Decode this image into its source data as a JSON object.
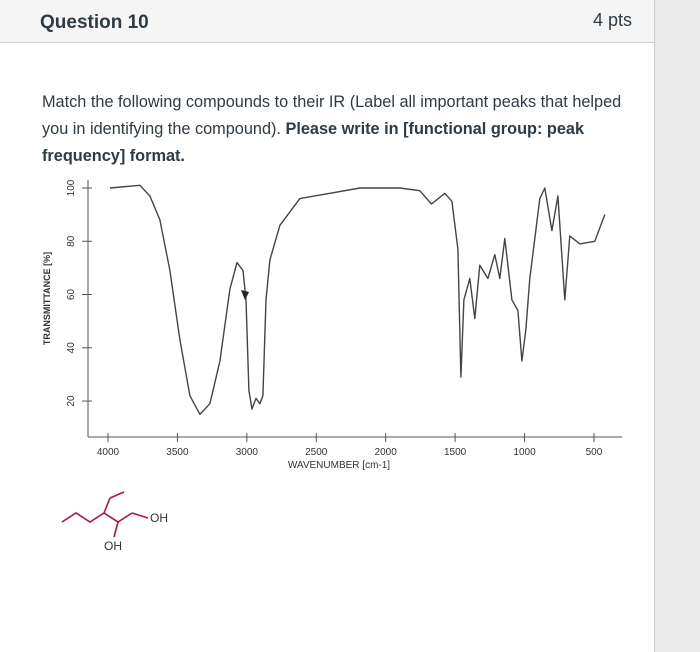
{
  "header": {
    "title": "Question 10",
    "points": "4 pts"
  },
  "prompt": {
    "text": "Match the following compounds to their IR (Label all important peaks that helped you in identifying the compound). ",
    "bold": "Please write in [functional group: peak frequency] format."
  },
  "chart_data": {
    "type": "line",
    "xlabel": "WAVENUMBER [cm-1]",
    "ylabel": "TRANSMITTANCE [%]",
    "color": "#444444",
    "xlim": [
      4144,
      298
    ],
    "ylim": [
      6.5,
      103
    ],
    "xticks": [
      4000,
      3500,
      3000,
      2500,
      2000,
      1500,
      1000,
      500
    ],
    "yticks": [
      20,
      40,
      60,
      80,
      100
    ],
    "x": [
      3986,
      3770,
      3698,
      3626,
      3554,
      3482,
      3410,
      3338,
      3266,
      3194,
      3122,
      3071,
      3028,
      3006,
      2985,
      2963,
      2934,
      2906,
      2884,
      2862,
      2834,
      2762,
      2618,
      2402,
      2186,
      1898,
      1754,
      1670,
      1574,
      1523,
      1480,
      1458,
      1437,
      1394,
      1358,
      1322,
      1264,
      1214,
      1178,
      1142,
      1091,
      1048,
      1019,
      990,
      962,
      926,
      890,
      854,
      803,
      760,
      710,
      674,
      602,
      494,
      422
    ],
    "values": [
      100,
      101,
      97,
      88,
      69,
      43,
      22,
      15,
      19,
      35,
      62,
      72,
      69,
      58,
      24,
      17,
      21,
      19,
      22,
      58,
      73,
      86,
      96,
      98,
      100,
      100,
      99,
      94,
      98,
      95,
      77,
      29,
      58,
      66,
      51,
      71,
      66,
      75,
      66,
      81,
      58,
      54,
      35,
      47,
      66,
      81,
      96,
      100,
      84,
      97,
      58,
      82,
      79,
      80,
      90
    ]
  },
  "molecule": {
    "labels": [
      "OH",
      "OH"
    ]
  }
}
